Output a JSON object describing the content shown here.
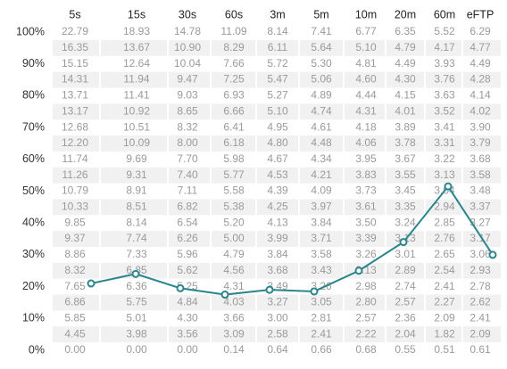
{
  "table": {
    "columns": [
      "5s",
      "15s",
      "30s",
      "60s",
      "3m",
      "5m",
      "10m",
      "20m",
      "60m",
      "eFTP"
    ],
    "rows": [
      {
        "label": "100%",
        "values": [
          "22.79",
          "18.93",
          "14.78",
          "11.09",
          "8.14",
          "7.41",
          "6.77",
          "6.35",
          "5.52",
          "6.29"
        ]
      },
      {
        "values": [
          "16.35",
          "13.67",
          "10.90",
          "8.29",
          "6.11",
          "5.64",
          "5.10",
          "4.79",
          "4.17",
          "4.77"
        ]
      },
      {
        "label": "90%",
        "values": [
          "15.15",
          "12.64",
          "10.04",
          "7.66",
          "5.72",
          "5.30",
          "4.81",
          "4.49",
          "3.93",
          "4.49"
        ]
      },
      {
        "values": [
          "14.31",
          "11.94",
          "9.47",
          "7.25",
          "5.47",
          "5.06",
          "4.60",
          "4.30",
          "3.76",
          "4.28"
        ]
      },
      {
        "label": "80%",
        "values": [
          "13.71",
          "11.41",
          "9.03",
          "6.93",
          "5.27",
          "4.89",
          "4.44",
          "4.15",
          "3.63",
          "4.14"
        ]
      },
      {
        "values": [
          "13.17",
          "10.92",
          "8.65",
          "6.66",
          "5.10",
          "4.74",
          "4.31",
          "4.01",
          "3.52",
          "4.02"
        ]
      },
      {
        "label": "70%",
        "values": [
          "12.68",
          "10.51",
          "8.32",
          "6.41",
          "4.95",
          "4.61",
          "4.18",
          "3.89",
          "3.41",
          "3.90"
        ]
      },
      {
        "values": [
          "12.20",
          "10.09",
          "8.00",
          "6.18",
          "4.80",
          "4.48",
          "4.06",
          "3.78",
          "3.31",
          "3.79"
        ]
      },
      {
        "label": "60%",
        "values": [
          "11.74",
          "9.69",
          "7.70",
          "5.98",
          "4.67",
          "4.34",
          "3.95",
          "3.67",
          "3.22",
          "3.68"
        ]
      },
      {
        "values": [
          "11.26",
          "9.31",
          "7.40",
          "5.77",
          "4.53",
          "4.21",
          "3.83",
          "3.55",
          "3.13",
          "3.58"
        ]
      },
      {
        "label": "50%",
        "values": [
          "10.79",
          "8.91",
          "7.11",
          "5.58",
          "4.39",
          "4.09",
          "3.73",
          "3.45",
          "3.04",
          "3.48"
        ]
      },
      {
        "values": [
          "10.33",
          "8.51",
          "6.82",
          "5.38",
          "4.25",
          "3.97",
          "3.61",
          "3.35",
          "2.94",
          "3.37"
        ]
      },
      {
        "label": "40%",
        "values": [
          "9.85",
          "8.14",
          "6.54",
          "5.20",
          "4.13",
          "3.84",
          "3.50",
          "3.24",
          "2.85",
          "3.27"
        ]
      },
      {
        "values": [
          "9.37",
          "7.74",
          "6.26",
          "5.00",
          "3.99",
          "3.71",
          "3.39",
          "3.13",
          "2.76",
          "3.17"
        ]
      },
      {
        "label": "30%",
        "values": [
          "8.86",
          "7.33",
          "5.96",
          "4.79",
          "3.84",
          "3.58",
          "3.26",
          "3.01",
          "2.65",
          "3.06"
        ]
      },
      {
        "values": [
          "8.32",
          "6.85",
          "5.62",
          "4.56",
          "3.68",
          "3.43",
          "3.13",
          "2.89",
          "2.54",
          "2.93"
        ]
      },
      {
        "label": "20%",
        "values": [
          "7.65",
          "6.36",
          "5.25",
          "4.31",
          "3.49",
          "3.26",
          "2.98",
          "2.74",
          "2.41",
          "2.78"
        ]
      },
      {
        "values": [
          "6.86",
          "5.75",
          "4.84",
          "4.03",
          "3.27",
          "3.05",
          "2.80",
          "2.57",
          "2.27",
          "2.62"
        ]
      },
      {
        "label": "10%",
        "values": [
          "5.85",
          "5.01",
          "4.30",
          "3.66",
          "3.00",
          "2.81",
          "2.57",
          "2.36",
          "2.09",
          "2.41"
        ]
      },
      {
        "values": [
          "4.45",
          "3.98",
          "3.56",
          "3.09",
          "2.58",
          "2.41",
          "2.22",
          "2.04",
          "1.82",
          "2.09"
        ]
      },
      {
        "label": "0%",
        "values": [
          "0.00",
          "0.00",
          "0.00",
          "0.14",
          "0.64",
          "0.66",
          "0.68",
          "0.55",
          "0.51",
          "0.61"
        ]
      }
    ]
  },
  "line": {
    "values": [
      21,
      24,
      19.5,
      17.5,
      19,
      18.5,
      25,
      34,
      51.5,
      30
    ],
    "ylim": [
      0,
      100
    ],
    "color": "#2a858c"
  }
}
